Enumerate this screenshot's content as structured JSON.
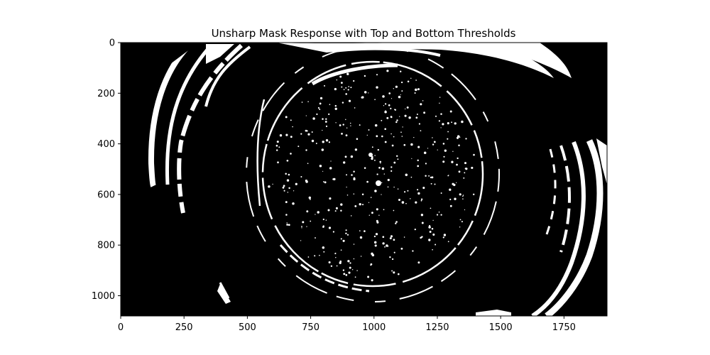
{
  "chart_data": {
    "type": "heatmap",
    "title": "Unsharp Mask Response with Top and Bottom Thresholds",
    "xlabel": "",
    "ylabel": "",
    "image_width": 1920,
    "image_height": 1080,
    "xlim": [
      0,
      1920
    ],
    "ylim": [
      1080,
      0
    ],
    "x_ticks": [
      0,
      250,
      500,
      750,
      1000,
      1250,
      1500,
      1750
    ],
    "y_ticks": [
      0,
      200,
      400,
      600,
      800,
      1000
    ],
    "colormap": "binary (black background, white thresholded response)",
    "colors": {
      "background": "#000000",
      "foreground": "#ffffff",
      "frame": "#000000"
    },
    "grid": false,
    "legend": "none"
  }
}
